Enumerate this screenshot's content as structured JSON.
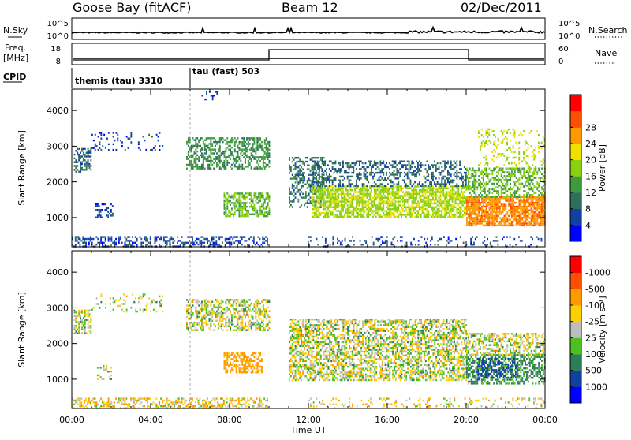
{
  "header": {
    "title": "Goose Bay (fitACF)",
    "beam": "Beam 12",
    "date": "02/Dec/2011"
  },
  "panel_labels": {
    "nsky": "N.Sky",
    "nsearch": "N.Search",
    "freq": "Freq.",
    "freq_unit": "[MHz]",
    "nave": "Nave",
    "cpid": "CPID",
    "cpid_1": "themis (tau) 3310",
    "cpid_2": "tau (fast) 503"
  },
  "noise_axis": {
    "left_ticks": [
      "10^5",
      "10^0"
    ],
    "right_ticks": [
      "10^5",
      "10^0"
    ]
  },
  "freq_axis": {
    "left_ticks": [
      "18",
      "8"
    ],
    "right_ticks": [
      "60",
      "0"
    ]
  },
  "chart_data": [
    {
      "type": "heatmap",
      "title": "",
      "xlabel": "Time UT",
      "ylabel": "Slant Range [km]",
      "xlim": [
        "00:00",
        "24:00"
      ],
      "ylim": [
        180,
        4600
      ],
      "x_ticks": [
        "00:00",
        "04:00",
        "08:00",
        "12:00",
        "16:00",
        "20:00",
        "00:00"
      ],
      "y_ticks": [
        1000,
        2000,
        3000,
        4000
      ],
      "colorbar": {
        "label": "Power [dB]",
        "ticks": [
          4,
          8,
          12,
          16,
          20,
          24,
          28
        ],
        "colors": [
          "#0000ff",
          "#1040a0",
          "#2e6e5a",
          "#3d9a3d",
          "#88d010",
          "#f0e000",
          "#ff9900",
          "#ff5000",
          "#ff0000"
        ]
      },
      "scatter_regions": [
        {
          "t0": 0.0,
          "t1": 9.9,
          "r0": 180,
          "r1": 480,
          "value": 6,
          "density": 0.45
        },
        {
          "t0": 0.1,
          "t1": 1.0,
          "r0": 2300,
          "r1": 2950,
          "value": 9,
          "density": 0.55
        },
        {
          "t0": 1.0,
          "t1": 4.6,
          "r0": 2900,
          "r1": 3400,
          "value": 6,
          "density": 0.15
        },
        {
          "t0": 1.2,
          "t1": 2.1,
          "r0": 1000,
          "r1": 1400,
          "value": 6,
          "density": 0.35
        },
        {
          "t0": 5.8,
          "t1": 10.0,
          "r0": 2400,
          "r1": 3250,
          "value": 13,
          "density": 0.5
        },
        {
          "t0": 7.7,
          "t1": 10.0,
          "r0": 1050,
          "r1": 1700,
          "value": 16,
          "density": 0.6
        },
        {
          "t0": 6.5,
          "t1": 7.4,
          "r0": 4300,
          "r1": 4550,
          "value": 6,
          "density": 0.3
        },
        {
          "t0": 11.0,
          "t1": 12.8,
          "r0": 1300,
          "r1": 2700,
          "value": 10,
          "density": 0.45
        },
        {
          "t0": 12.2,
          "t1": 20.0,
          "r0": 1000,
          "r1": 1900,
          "value": 19,
          "density": 0.72
        },
        {
          "t0": 12.2,
          "t1": 20.0,
          "r0": 1900,
          "r1": 2600,
          "value": 9,
          "density": 0.4
        },
        {
          "t0": 20.0,
          "t1": 24.0,
          "r0": 800,
          "r1": 1600,
          "value": 27,
          "density": 0.8
        },
        {
          "t0": 20.0,
          "t1": 24.0,
          "r0": 1600,
          "r1": 2400,
          "value": 16,
          "density": 0.5
        },
        {
          "t0": 20.6,
          "t1": 24.0,
          "r0": 2400,
          "r1": 3500,
          "value": 20,
          "density": 0.2
        },
        {
          "t0": 12.0,
          "t1": 24.0,
          "r0": 180,
          "r1": 480,
          "value": 6,
          "density": 0.18
        }
      ]
    },
    {
      "type": "heatmap",
      "title": "",
      "xlabel": "Time UT",
      "ylabel": "Slant Range [km]",
      "xlim": [
        "00:00",
        "24:00"
      ],
      "ylim": [
        180,
        4600
      ],
      "x_ticks": [
        "00:00",
        "04:00",
        "08:00",
        "12:00",
        "16:00",
        "20:00",
        "00:00"
      ],
      "y_ticks": [
        1000,
        2000,
        3000,
        4000
      ],
      "colorbar": {
        "label": "Velocity [m s⁻¹]",
        "ticks": [
          1000,
          500,
          100,
          25,
          -25,
          -100,
          -500,
          -1000
        ],
        "colors": [
          "#0000ff",
          "#1040a0",
          "#2e7d5a",
          "#4dc020",
          "#bdbdbd",
          "#ffd000",
          "#ff9900",
          "#ff5000",
          "#ff0000"
        ]
      },
      "scatter_regions": [
        {
          "t0": 0.0,
          "t1": 9.9,
          "r0": 180,
          "r1": 480,
          "value": -60,
          "density": 0.45
        },
        {
          "t0": 0.1,
          "t1": 1.0,
          "r0": 2300,
          "r1": 2950,
          "value": 0,
          "density": 0.55
        },
        {
          "t0": 1.0,
          "t1": 4.6,
          "r0": 2900,
          "r1": 3400,
          "value": 0,
          "density": 0.15
        },
        {
          "t0": 1.2,
          "t1": 2.1,
          "r0": 1000,
          "r1": 1400,
          "value": 0,
          "density": 0.3
        },
        {
          "t0": 5.8,
          "t1": 10.0,
          "r0": 2400,
          "r1": 3250,
          "value": 0,
          "density": 0.5
        },
        {
          "t0": 7.7,
          "t1": 9.6,
          "r0": 1200,
          "r1": 1750,
          "value": -200,
          "density": 0.6
        },
        {
          "t0": 11.0,
          "t1": 20.0,
          "r0": 1000,
          "r1": 2700,
          "value": 0,
          "density": 0.55
        },
        {
          "t0": 20.0,
          "t1": 24.0,
          "r0": 900,
          "r1": 1700,
          "value": 150,
          "density": 0.55
        },
        {
          "t0": 20.0,
          "t1": 24.0,
          "r0": 1700,
          "r1": 2300,
          "value": 0,
          "density": 0.5
        },
        {
          "t0": 20.5,
          "t1": 22.6,
          "r0": 1000,
          "r1": 1600,
          "value": 700,
          "density": 0.35
        },
        {
          "t0": 12.0,
          "t1": 24.0,
          "r0": 180,
          "r1": 480,
          "value": -60,
          "density": 0.18
        }
      ]
    }
  ]
}
